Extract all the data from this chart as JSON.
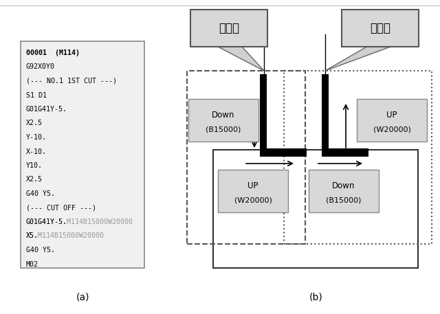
{
  "title_a": "(a)",
  "title_b": "(b)",
  "bg_color": "#f0f0f0",
  "white": "#ffffff",
  "font_size_code": 7.2,
  "font_size_label": 8.5,
  "font_size_jp": 12,
  "font_size_caption": 10,
  "code_text_normal": "#000000",
  "code_text_gray": "#999999",
  "lines": [
    {
      "text": "00001  (M114)",
      "bold": true,
      "suffix": null
    },
    {
      "text": "G92X0Y0",
      "bold": false,
      "suffix": null
    },
    {
      "text": "(--- NO.1 1ST CUT ---)",
      "bold": false,
      "suffix": null
    },
    {
      "text": "S1 D1",
      "bold": false,
      "suffix": null
    },
    {
      "text": "G01G41Y-5.",
      "bold": false,
      "suffix": null
    },
    {
      "text": "X2.5",
      "bold": false,
      "suffix": null
    },
    {
      "text": "Y-10.",
      "bold": false,
      "suffix": null
    },
    {
      "text": "X-10.",
      "bold": false,
      "suffix": null
    },
    {
      "text": "Y10.",
      "bold": false,
      "suffix": null
    },
    {
      "text": "X2.5",
      "bold": false,
      "suffix": null
    },
    {
      "text": "G40 Y5.",
      "bold": false,
      "suffix": null
    },
    {
      "text": "(--- CUT OFF ---)",
      "bold": false,
      "suffix": null
    },
    {
      "text": "G01G41Y-5.",
      "bold": false,
      "suffix": "M114B15000W20000"
    },
    {
      "text": "X5.",
      "bold": false,
      "suffix": "M114B15000W20000"
    },
    {
      "text": "G40 Y5.",
      "bold": false,
      "suffix": null
    },
    {
      "text": "M02",
      "bold": false,
      "suffix": null
    }
  ],
  "callout_left_text": "進入部",
  "callout_right_text": "退避部",
  "label_ul": [
    "Down",
    "(B15000)"
  ],
  "label_ur": [
    "UP",
    "(W20000)"
  ],
  "label_ll": [
    "UP",
    "(W20000)"
  ],
  "label_lr": [
    "Down",
    "(B15000)"
  ]
}
